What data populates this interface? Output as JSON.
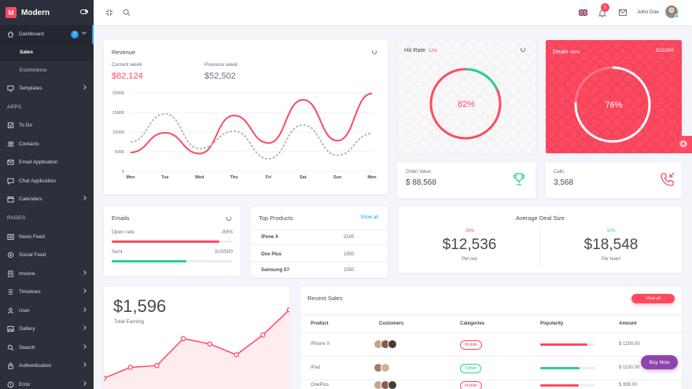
{
  "sidebar": {
    "brand": "Modern",
    "logo_letter": "M",
    "dashboard": {
      "label": "Dashboard",
      "badge": "2"
    },
    "dashboard_sub": [
      "Sales",
      "Ecommerce"
    ],
    "templates": "Templates",
    "apps_header": "APPS",
    "apps": [
      "To Do",
      "Contacts",
      "Email Application",
      "Chat Application",
      "Calenders"
    ],
    "pages_header": "PAGES",
    "pages": [
      "News Feed",
      "Social Feed",
      "Invoice",
      "Timelines",
      "User",
      "Gallery",
      "Search",
      "Authentication",
      "Error"
    ]
  },
  "topbar": {
    "notification_count": "5",
    "user_name": "John Doe"
  },
  "revenue": {
    "title": "Revenue",
    "current_label": "Current week",
    "current_value": "$82,124",
    "previous_label": "Previous week",
    "previous_value": "$52,502"
  },
  "hit_rate": {
    "title": "Hit Rate",
    "change": "-12%",
    "value": "82%",
    "fraction": 0.82
  },
  "deals": {
    "title": "Deals",
    "change": "-55%",
    "count": "152/200",
    "value": "76%",
    "fraction": 0.76
  },
  "order_value": {
    "label": "Order Value",
    "value": "$ 88,568"
  },
  "calls": {
    "label": "Calls",
    "value": "3,568"
  },
  "emails": {
    "title": "Emails",
    "open_label": "Open rate",
    "open_value": "89%",
    "open_fraction": 0.89,
    "sent_label": "Sent",
    "sent_value": "310/500",
    "sent_fraction": 0.62
  },
  "top_products": {
    "title": "Top Products",
    "link": "Show all",
    "items": [
      {
        "name": "iPone X",
        "count": "2245"
      },
      {
        "name": "One Plus",
        "count": "1850"
      },
      {
        "name": "Samsung S7",
        "count": "1550"
      }
    ]
  },
  "avg_deal": {
    "title": "Average Deal Size",
    "rep_change": "-30%",
    "rep_value": "$12,536",
    "rep_label": "Per rep",
    "team_change": "12%",
    "team_value": "$18,548",
    "team_label": "Per team"
  },
  "earning": {
    "value": "$1,596",
    "label": "Total Earning"
  },
  "recent_sales": {
    "title": "Recent Sales",
    "button": "View all",
    "columns": [
      "Product",
      "Customers",
      "Categories",
      "Popularity",
      "Amount"
    ],
    "rows": [
      {
        "product": "iPhone X",
        "category": "Mobile",
        "popularity": 0.85,
        "amount": "$ 1200.00"
      },
      {
        "product": "iPad",
        "category": "Teblet",
        "popularity": 0.72,
        "amount": "$ 1190.00"
      },
      {
        "product": "OnePlus",
        "category": "Mobile",
        "popularity": 0.7,
        "amount": "$ 999.00"
      }
    ]
  },
  "buy_now": "Buy Now",
  "colors": {
    "accent": "#ff4961",
    "success": "#28d094",
    "info": "#1e9ff2",
    "sidebar": "#2c303b"
  },
  "chart_data": [
    {
      "type": "line",
      "categories": [
        "Mon",
        "Tue",
        "Wed",
        "Thu",
        "Fri",
        "Sat",
        "Sun",
        "Mon"
      ],
      "ylim": [
        0,
        20000
      ],
      "yticks": [
        0,
        5000,
        10000,
        15000,
        20000
      ],
      "series": [
        {
          "values": [
            4800,
            9800,
            4500,
            14200,
            7200,
            18200,
            7800,
            19800
          ],
          "style": "solid"
        },
        {
          "values": [
            7500,
            14600,
            5800,
            10200,
            3200,
            11800,
            4100,
            9600
          ],
          "style": "dashed"
        }
      ]
    },
    {
      "type": "area",
      "values": [
        300,
        600,
        650,
        1400,
        1250,
        950,
        1500,
        2200
      ],
      "ylim": [
        0,
        2400
      ]
    }
  ]
}
